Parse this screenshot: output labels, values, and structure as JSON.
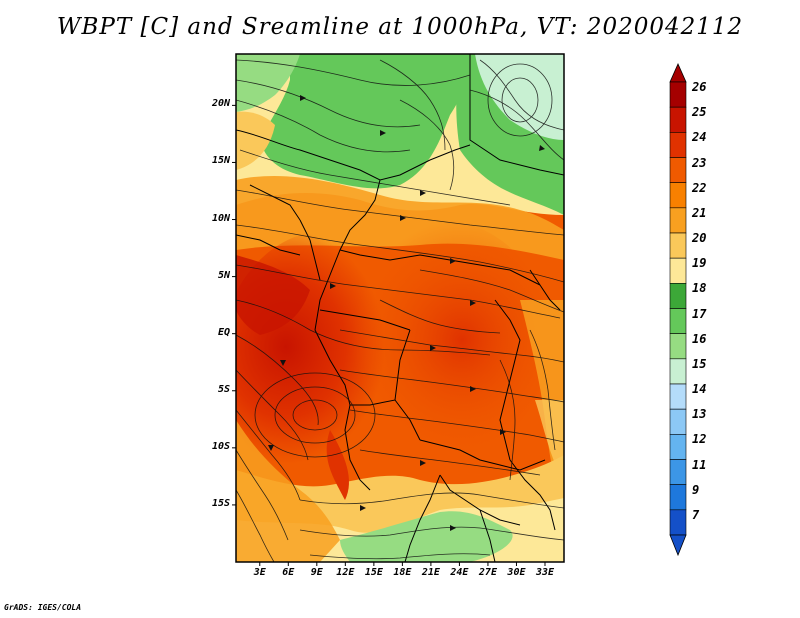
{
  "title": "WBPT [C] and Sreamline at 1000hPa, VT: 2020042112",
  "credit": "GrADS: IGES/COLA",
  "lat_ticks": [
    "20N",
    "15N",
    "10N",
    "5N",
    "EQ",
    "5S",
    "10S",
    "15S"
  ],
  "lat_values": [
    20,
    15,
    10,
    5,
    0,
    -5,
    -10,
    -15
  ],
  "lon_ticks": [
    "3E",
    "6E",
    "9E",
    "12E",
    "15E",
    "18E",
    "21E",
    "24E",
    "27E",
    "30E",
    "33E"
  ],
  "lon_values": [
    3,
    6,
    9,
    12,
    15,
    18,
    21,
    24,
    27,
    30,
    33
  ],
  "domain": {
    "lon_min": 0.5,
    "lon_max": 35,
    "lat_min": -20,
    "lat_max": 24.5
  },
  "colorbar": {
    "labels": [
      "26",
      "25",
      "24",
      "23",
      "22",
      "21",
      "20",
      "19",
      "18",
      "17",
      "16",
      "15",
      "14",
      "13",
      "12",
      "11",
      "9",
      "7"
    ],
    "colors": [
      "#a50000",
      "#c81400",
      "#e03200",
      "#f05a00",
      "#f88000",
      "#f8a020",
      "#fac85a",
      "#fde898",
      "#3ca838",
      "#64c85a",
      "#96dc82",
      "#c8f0d2",
      "#b4dcfa",
      "#8cc8f5",
      "#64b4f0",
      "#3c96e6",
      "#1e78dc",
      "#1450c8"
    ]
  },
  "icons": {
    "arrow_up": "colorbar-top-arrow",
    "arrow_down": "colorbar-bottom-arrow"
  }
}
